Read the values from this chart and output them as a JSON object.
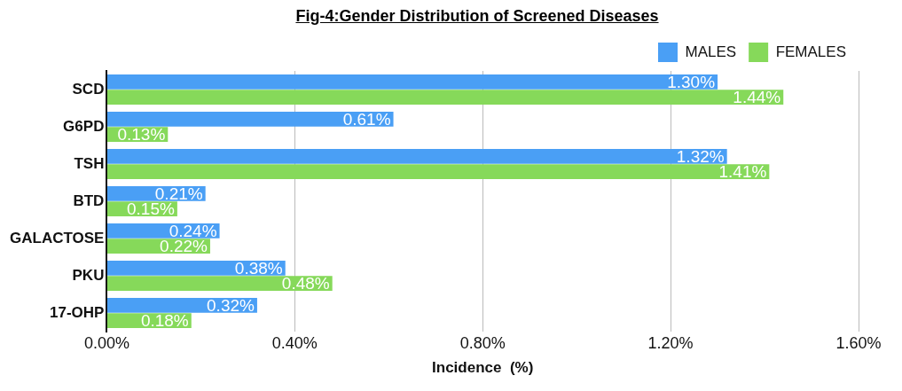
{
  "chart_data": {
    "type": "bar",
    "orientation": "horizontal",
    "title": "Fig-4:Gender Distribution of Screened Diseases",
    "xlabel": "Incidence  (%)",
    "categories": [
      "SCD",
      "G6PD",
      "TSH",
      "BTD",
      "GALACTOSE",
      "PKU",
      "17-OHP"
    ],
    "series": [
      {
        "name": "MALES",
        "color": "#4a9ff5",
        "values": [
          1.3,
          0.61,
          1.32,
          0.21,
          0.24,
          0.38,
          0.32
        ],
        "value_labels": [
          "1.30%",
          "0.61%",
          "1.32%",
          "0.21%",
          "0.24%",
          "0.38%",
          "0.32%"
        ]
      },
      {
        "name": "FEMALES",
        "color": "#86d95a",
        "values": [
          1.44,
          0.13,
          1.41,
          0.15,
          0.22,
          0.48,
          0.18
        ],
        "value_labels": [
          "1.44%",
          "0.13%",
          "1.41%",
          "0.15%",
          "0.22%",
          "0.48%",
          "0.18%"
        ]
      }
    ],
    "xlim": [
      0,
      1.6
    ],
    "xticks": [
      {
        "value": 0,
        "label": "0.00%"
      },
      {
        "value": 0.4,
        "label": "0.40%"
      },
      {
        "value": 0.8,
        "label": "0.80%"
      },
      {
        "value": 1.2,
        "label": "1.20%"
      },
      {
        "value": 1.6,
        "label": "1.60%"
      }
    ],
    "grid": "x",
    "legend": "top right"
  }
}
